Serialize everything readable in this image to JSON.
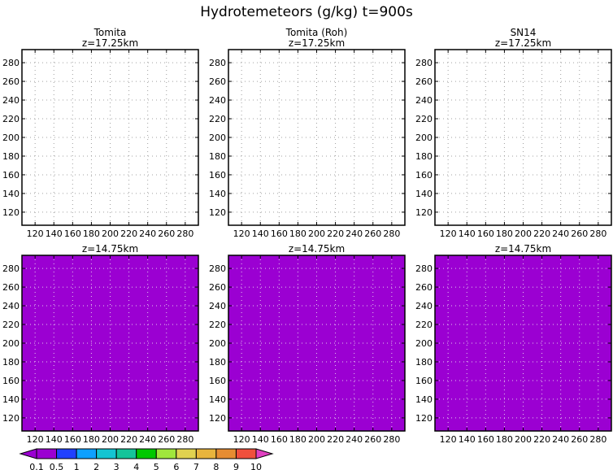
{
  "title": "Hydrotemeteors (g/kg) t=900s",
  "chart_data": {
    "type": "heatmap",
    "title": "Hydrotemeteors (g/kg) t=900s",
    "xlim": [
      106,
      294
    ],
    "ylim": [
      106,
      294
    ],
    "xticks": [
      120,
      140,
      160,
      180,
      200,
      220,
      240,
      260,
      280
    ],
    "yticks": [
      120,
      140,
      160,
      180,
      200,
      220,
      240,
      260,
      280
    ],
    "grid": true,
    "panels": [
      {
        "column_title": "Tomita",
        "subtitle": "z=17.25km",
        "field": "none",
        "fill_color": null
      },
      {
        "column_title": "Tomita (Roh)",
        "subtitle": "z=17.25km",
        "field": "none",
        "fill_color": null
      },
      {
        "column_title": "SN14",
        "subtitle": "z=17.25km",
        "field": "none",
        "fill_color": null
      },
      {
        "column_title": "",
        "subtitle": "z=14.75km",
        "field": "uniform 0.1-0.5",
        "fill_color": "#9b00d2"
      },
      {
        "column_title": "",
        "subtitle": "z=14.75km",
        "field": "uniform 0.1-0.5",
        "fill_color": "#9b00d2"
      },
      {
        "column_title": "",
        "subtitle": "z=14.75km",
        "field": "uniform 0.1-0.5",
        "fill_color": "#9b00d2"
      }
    ],
    "colorbar": {
      "labels": [
        "0.1",
        "0.5",
        "1",
        "2",
        "3",
        "4",
        "5",
        "6",
        "7",
        "8",
        "9",
        "10"
      ],
      "colors": [
        "#9b00d2",
        "#9b00d2",
        "#2040ff",
        "#0ea0ff",
        "#14c4d2",
        "#14c49a",
        "#00c800",
        "#a0e63c",
        "#e0d250",
        "#e8b43c",
        "#e68c32",
        "#f0503c",
        "#f02080",
        "#e040c0"
      ],
      "extend": "both",
      "placement": "bottom-left"
    }
  }
}
